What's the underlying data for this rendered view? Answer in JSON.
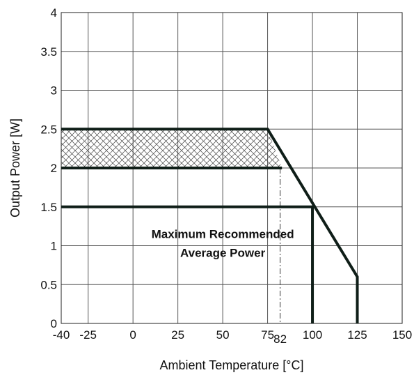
{
  "chart_data": {
    "type": "line",
    "title": "",
    "xlabel": "Ambient Temperature [°C]",
    "ylabel": "Output Power [W]",
    "xlim": [
      -40,
      150
    ],
    "ylim": [
      0,
      4
    ],
    "x_ticks": [
      -40,
      -25,
      0,
      25,
      50,
      75,
      100,
      125,
      150
    ],
    "x_tick_labels": [
      "-40",
      "-25",
      "0",
      "25",
      "50",
      "75",
      "100",
      "125",
      "150"
    ],
    "y_ticks": [
      0,
      0.5,
      1,
      1.5,
      2,
      2.5,
      3,
      3.5,
      4
    ],
    "y_tick_labels": [
      "0",
      "0.5",
      "1",
      "1.5",
      "2",
      "2.5",
      "3",
      "3.5",
      "4"
    ],
    "grid": true,
    "series": [
      {
        "values": [
          [
            -40,
            2.5
          ],
          [
            75,
            2.5
          ],
          [
            125,
            0.6
          ],
          [
            125,
            0
          ]
        ]
      },
      {
        "values": [
          [
            -40,
            2.0
          ],
          [
            83,
            2.0
          ]
        ]
      },
      {
        "values": [
          [
            -40,
            1.5
          ],
          [
            100,
            1.5
          ],
          [
            100,
            0
          ]
        ]
      }
    ],
    "hatched_region": {
      "x": [
        -40,
        75,
        83,
        -40
      ],
      "y": [
        2.5,
        2.5,
        2.0,
        2.0
      ]
    },
    "marker_line": {
      "x": 82,
      "label": "82"
    },
    "annotation": {
      "line1": "Maximum Recommended",
      "line2": "Average Power",
      "x": 50,
      "y": 1.1
    }
  }
}
